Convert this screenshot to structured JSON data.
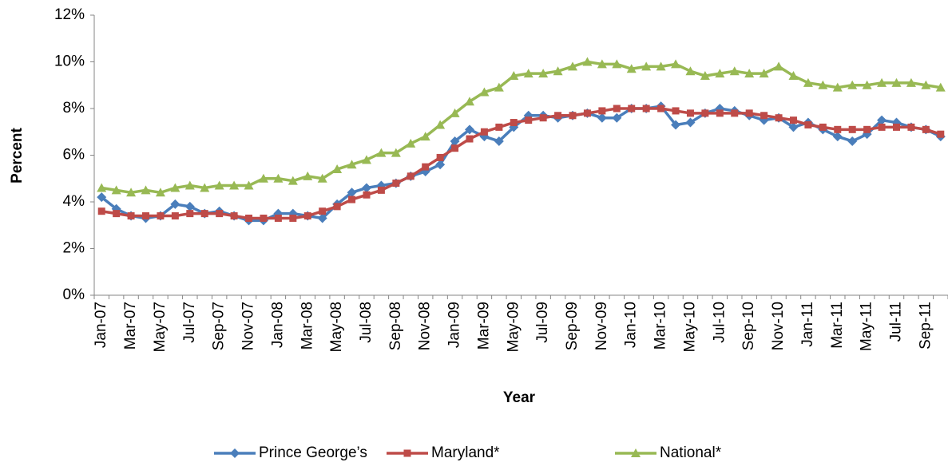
{
  "chart_data": {
    "type": "line",
    "y_label": "Percent",
    "x_label": "Year",
    "categories": [
      "Jan-07",
      null,
      "Mar-07",
      null,
      "May-07",
      null,
      "Jul-07",
      null,
      "Sep-07",
      null,
      "Nov-07",
      null,
      "Jan-08",
      null,
      "Mar-08",
      null,
      "May-08",
      null,
      "Jul-08",
      null,
      "Sep-08",
      null,
      "Nov-08",
      null,
      "Jan-09",
      null,
      "Mar-09",
      null,
      "May-09",
      null,
      "Jul-09",
      null,
      "Sep-09",
      null,
      "Nov-09",
      null,
      "Jan-10",
      null,
      "Mar-10",
      null,
      "May-10",
      null,
      "Jul-10",
      null,
      "Sep-10",
      null,
      "Nov-10",
      null,
      "Jan-11",
      null,
      "Mar-11",
      null,
      "May-11",
      null,
      "Jul-11",
      null,
      "Sep-11",
      null
    ],
    "series": [
      {
        "name": "Prince George’s",
        "color": "#4a7ebb",
        "marker": "diamond",
        "values": [
          4.2,
          3.7,
          3.4,
          3.3,
          3.4,
          3.9,
          3.8,
          3.5,
          3.6,
          3.4,
          3.2,
          3.2,
          3.5,
          3.5,
          3.4,
          3.3,
          3.9,
          4.4,
          4.6,
          4.7,
          4.8,
          5.1,
          5.3,
          5.6,
          6.6,
          7.1,
          6.8,
          6.6,
          7.2,
          7.7,
          7.7,
          7.6,
          7.7,
          7.8,
          7.6,
          7.6,
          8.0,
          8.0,
          8.1,
          7.3,
          7.4,
          7.8,
          8.0,
          7.9,
          7.7,
          7.5,
          7.6,
          7.2,
          7.4,
          7.1,
          6.8,
          6.6,
          6.9,
          7.5,
          7.4,
          7.2,
          7.1,
          6.8
        ]
      },
      {
        "name": "Maryland*",
        "color": "#be4b48",
        "marker": "square",
        "values": [
          3.6,
          3.5,
          3.4,
          3.4,
          3.4,
          3.4,
          3.5,
          3.5,
          3.5,
          3.4,
          3.3,
          3.3,
          3.3,
          3.3,
          3.4,
          3.6,
          3.8,
          4.1,
          4.3,
          4.5,
          4.8,
          5.1,
          5.5,
          5.9,
          6.3,
          6.7,
          7.0,
          7.2,
          7.4,
          7.5,
          7.6,
          7.7,
          7.7,
          7.8,
          7.9,
          8.0,
          8.0,
          8.0,
          8.0,
          7.9,
          7.8,
          7.8,
          7.8,
          7.8,
          7.8,
          7.7,
          7.6,
          7.5,
          7.3,
          7.2,
          7.1,
          7.1,
          7.1,
          7.2,
          7.2,
          7.2,
          7.1,
          6.9
        ]
      },
      {
        "name": "National*",
        "color": "#98b954",
        "marker": "triangle",
        "values": [
          4.6,
          4.5,
          4.4,
          4.5,
          4.4,
          4.6,
          4.7,
          4.6,
          4.7,
          4.7,
          4.7,
          5.0,
          5.0,
          4.9,
          5.1,
          5.0,
          5.4,
          5.6,
          5.8,
          6.1,
          6.1,
          6.5,
          6.8,
          7.3,
          7.8,
          8.3,
          8.7,
          8.9,
          9.4,
          9.5,
          9.5,
          9.6,
          9.8,
          10.0,
          9.9,
          9.9,
          9.7,
          9.8,
          9.8,
          9.9,
          9.6,
          9.4,
          9.5,
          9.6,
          9.5,
          9.5,
          9.8,
          9.4,
          9.1,
          9.0,
          8.9,
          9.0,
          9.0,
          9.1,
          9.1,
          9.1,
          9.0,
          8.9
        ]
      }
    ],
    "ylim": [
      0,
      12
    ],
    "yticks": [
      {
        "value": 0,
        "label": "0%"
      },
      {
        "value": 2,
        "label": "2%"
      },
      {
        "value": 4,
        "label": "4%"
      },
      {
        "value": 6,
        "label": "6%"
      },
      {
        "value": 8,
        "label": "8%"
      },
      {
        "value": 10,
        "label": "10%"
      },
      {
        "value": 12,
        "label": "12%"
      }
    ],
    "legend": "bottom",
    "grid": false
  }
}
